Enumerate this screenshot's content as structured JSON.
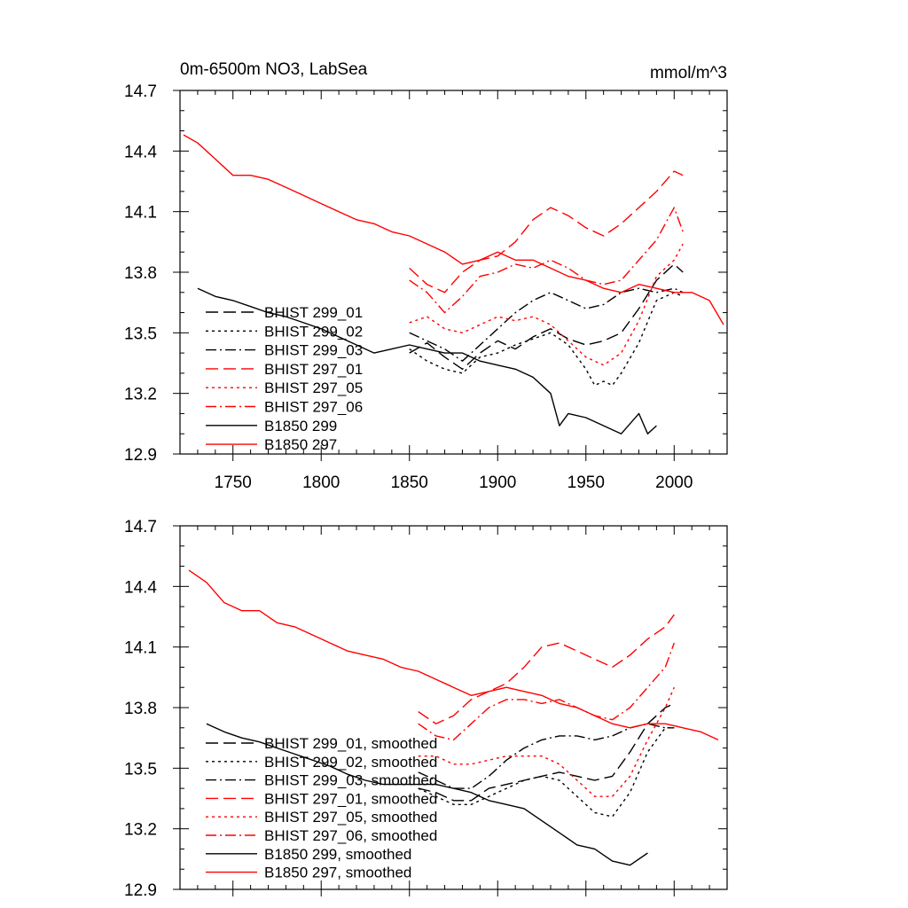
{
  "colors": {
    "black": "#000000",
    "red": "#ff0000"
  },
  "chart_data": [
    {
      "type": "line",
      "title": "0m-6500m NO3, LabSea",
      "units": "mmol/m^3",
      "xlim": [
        1720,
        2030
      ],
      "ylim": [
        12.9,
        14.7
      ],
      "xticks": [
        1750,
        1800,
        1850,
        1900,
        1950,
        2000
      ],
      "xtick_labels": [
        "1750",
        "1800",
        "1850",
        "1900",
        "1950",
        "2000"
      ],
      "yticks": [
        12.9,
        13.2,
        13.5,
        13.8,
        14.1,
        14.4,
        14.7
      ],
      "ytick_labels": [
        "12.9",
        "13.2",
        "13.5",
        "13.8",
        "14.1",
        "14.4",
        "14.7"
      ],
      "legend_position": "left",
      "series": [
        {
          "name": "BHIST 299_01",
          "color": "#000000",
          "dash": "dash",
          "x": [
            1850,
            1860,
            1870,
            1880,
            1890,
            1900,
            1910,
            1920,
            1930,
            1940,
            1950,
            1960,
            1970,
            1980,
            1990,
            2000,
            2005
          ],
          "y": [
            13.4,
            13.45,
            13.38,
            13.32,
            13.4,
            13.46,
            13.42,
            13.48,
            13.52,
            13.47,
            13.44,
            13.46,
            13.5,
            13.62,
            13.76,
            13.84,
            13.8
          ]
        },
        {
          "name": "BHIST 299_02",
          "color": "#000000",
          "dash": "dot",
          "x": [
            1850,
            1860,
            1870,
            1880,
            1890,
            1900,
            1910,
            1920,
            1930,
            1940,
            1950,
            1955,
            1960,
            1965,
            1970,
            1980,
            1990,
            2000,
            2005
          ],
          "y": [
            13.42,
            13.36,
            13.32,
            13.3,
            13.38,
            13.4,
            13.44,
            13.47,
            13.5,
            13.44,
            13.32,
            13.24,
            13.26,
            13.24,
            13.3,
            13.45,
            13.66,
            13.7,
            13.68
          ]
        },
        {
          "name": "BHIST 299_03",
          "color": "#000000",
          "dash": "dashdot",
          "x": [
            1850,
            1860,
            1870,
            1880,
            1890,
            1900,
            1910,
            1920,
            1930,
            1940,
            1950,
            1960,
            1970,
            1980,
            1990,
            2000,
            2005
          ],
          "y": [
            13.5,
            13.46,
            13.42,
            13.36,
            13.44,
            13.52,
            13.6,
            13.66,
            13.7,
            13.66,
            13.62,
            13.64,
            13.7,
            13.72,
            13.7,
            13.72,
            13.7
          ]
        },
        {
          "name": "BHIST 297_01",
          "color": "#ff0000",
          "dash": "dash",
          "x": [
            1850,
            1860,
            1870,
            1880,
            1890,
            1900,
            1910,
            1920,
            1930,
            1940,
            1950,
            1960,
            1970,
            1980,
            1990,
            2000,
            2005
          ],
          "y": [
            13.82,
            13.74,
            13.7,
            13.8,
            13.86,
            13.88,
            13.95,
            14.06,
            14.12,
            14.08,
            14.02,
            13.98,
            14.04,
            14.12,
            14.2,
            14.3,
            14.28
          ]
        },
        {
          "name": "BHIST 297_05",
          "color": "#ff0000",
          "dash": "dot",
          "x": [
            1850,
            1860,
            1870,
            1880,
            1890,
            1900,
            1910,
            1920,
            1930,
            1940,
            1950,
            1960,
            1970,
            1980,
            1990,
            2000,
            2005
          ],
          "y": [
            13.55,
            13.58,
            13.52,
            13.5,
            13.54,
            13.58,
            13.56,
            13.58,
            13.54,
            13.46,
            13.38,
            13.34,
            13.4,
            13.56,
            13.78,
            13.86,
            13.94
          ]
        },
        {
          "name": "BHIST 297_06",
          "color": "#ff0000",
          "dash": "dashdot",
          "x": [
            1850,
            1860,
            1870,
            1880,
            1890,
            1900,
            1910,
            1920,
            1930,
            1940,
            1950,
            1960,
            1970,
            1980,
            1990,
            2000,
            2005
          ],
          "y": [
            13.76,
            13.7,
            13.6,
            13.68,
            13.78,
            13.8,
            13.84,
            13.82,
            13.86,
            13.82,
            13.76,
            13.74,
            13.76,
            13.86,
            13.96,
            14.12,
            14.0
          ]
        },
        {
          "name": "B1850 299",
          "color": "#000000",
          "dash": "solid",
          "x": [
            1730,
            1740,
            1750,
            1760,
            1770,
            1780,
            1790,
            1800,
            1810,
            1820,
            1830,
            1840,
            1850,
            1860,
            1870,
            1880,
            1890,
            1900,
            1910,
            1920,
            1930,
            1935,
            1940,
            1950,
            1960,
            1970,
            1980,
            1985,
            1990
          ],
          "y": [
            13.72,
            13.68,
            13.66,
            13.63,
            13.6,
            13.58,
            13.55,
            13.52,
            13.48,
            13.44,
            13.4,
            13.42,
            13.44,
            13.42,
            13.4,
            13.4,
            13.36,
            13.34,
            13.32,
            13.28,
            13.2,
            13.04,
            13.1,
            13.08,
            13.04,
            13.0,
            13.1,
            13.0,
            13.04
          ]
        },
        {
          "name": "B1850 297",
          "color": "#ff0000",
          "dash": "solid",
          "x": [
            1722,
            1730,
            1740,
            1750,
            1760,
            1770,
            1780,
            1790,
            1800,
            1810,
            1820,
            1830,
            1840,
            1850,
            1860,
            1870,
            1880,
            1890,
            1900,
            1910,
            1920,
            1930,
            1940,
            1950,
            1960,
            1970,
            1980,
            1990,
            2000,
            2010,
            2020,
            2028
          ],
          "y": [
            14.48,
            14.44,
            14.36,
            14.28,
            14.28,
            14.26,
            14.22,
            14.18,
            14.14,
            14.1,
            14.06,
            14.04,
            14.0,
            13.98,
            13.94,
            13.9,
            13.84,
            13.86,
            13.9,
            13.86,
            13.86,
            13.82,
            13.78,
            13.76,
            13.72,
            13.7,
            13.74,
            13.72,
            13.7,
            13.7,
            13.66,
            13.54
          ]
        }
      ]
    },
    {
      "type": "line",
      "xlim": [
        1720,
        2030
      ],
      "ylim": [
        12.9,
        14.7
      ],
      "xticks": [
        1750,
        1800,
        1850,
        1900,
        1950,
        2000
      ],
      "yticks": [
        12.9,
        13.2,
        13.5,
        13.8,
        14.1,
        14.4,
        14.7
      ],
      "ytick_labels": [
        "12.9",
        "13.2",
        "13.5",
        "13.8",
        "14.1",
        "14.4",
        "14.7"
      ],
      "legend_position": "left",
      "series": [
        {
          "name": "BHIST 299_01, smoothed",
          "color": "#000000",
          "dash": "dash",
          "x": [
            1855,
            1865,
            1875,
            1885,
            1895,
            1905,
            1915,
            1925,
            1935,
            1945,
            1955,
            1965,
            1975,
            1985,
            1995,
            2000
          ],
          "y": [
            13.4,
            13.38,
            13.34,
            13.34,
            13.4,
            13.42,
            13.44,
            13.46,
            13.48,
            13.46,
            13.44,
            13.46,
            13.58,
            13.72,
            13.8,
            13.82
          ]
        },
        {
          "name": "BHIST 299_02, smoothed",
          "color": "#000000",
          "dash": "dot",
          "x": [
            1855,
            1865,
            1875,
            1885,
            1895,
            1905,
            1915,
            1925,
            1935,
            1945,
            1955,
            1965,
            1975,
            1985,
            1995,
            2000
          ],
          "y": [
            13.4,
            13.36,
            13.32,
            13.32,
            13.36,
            13.4,
            13.44,
            13.46,
            13.44,
            13.36,
            13.28,
            13.26,
            13.38,
            13.58,
            13.7,
            13.7
          ]
        },
        {
          "name": "BHIST 299_03, smoothed",
          "color": "#000000",
          "dash": "dashdot",
          "x": [
            1855,
            1865,
            1875,
            1885,
            1895,
            1905,
            1915,
            1925,
            1935,
            1945,
            1955,
            1965,
            1975,
            1985,
            1995,
            2000
          ],
          "y": [
            13.48,
            13.44,
            13.4,
            13.4,
            13.46,
            13.54,
            13.6,
            13.64,
            13.66,
            13.66,
            13.64,
            13.66,
            13.7,
            13.72,
            13.7,
            13.7
          ]
        },
        {
          "name": "BHIST 297_01, smoothed",
          "color": "#ff0000",
          "dash": "dash",
          "x": [
            1855,
            1865,
            1875,
            1885,
            1895,
            1905,
            1915,
            1925,
            1935,
            1945,
            1955,
            1965,
            1975,
            1985,
            1995,
            2000
          ],
          "y": [
            13.78,
            13.72,
            13.76,
            13.84,
            13.88,
            13.92,
            14.0,
            14.1,
            14.12,
            14.08,
            14.04,
            14.0,
            14.06,
            14.14,
            14.2,
            14.26
          ]
        },
        {
          "name": "BHIST 297_05, smoothed",
          "color": "#ff0000",
          "dash": "dot",
          "x": [
            1855,
            1865,
            1875,
            1885,
            1895,
            1905,
            1915,
            1925,
            1935,
            1945,
            1955,
            1965,
            1975,
            1985,
            1995,
            2000
          ],
          "y": [
            13.56,
            13.56,
            13.52,
            13.52,
            13.54,
            13.56,
            13.56,
            13.56,
            13.52,
            13.44,
            13.36,
            13.36,
            13.46,
            13.64,
            13.8,
            13.9
          ]
        },
        {
          "name": "BHIST 297_06, smoothed",
          "color": "#ff0000",
          "dash": "dashdot",
          "x": [
            1855,
            1865,
            1875,
            1885,
            1895,
            1905,
            1915,
            1925,
            1935,
            1945,
            1955,
            1965,
            1975,
            1985,
            1995,
            2000
          ],
          "y": [
            13.72,
            13.66,
            13.64,
            13.72,
            13.8,
            13.84,
            13.84,
            13.82,
            13.84,
            13.8,
            13.76,
            13.74,
            13.8,
            13.9,
            14.0,
            14.12
          ]
        },
        {
          "name": "B1850 299, smoothed",
          "color": "#000000",
          "dash": "solid",
          "x": [
            1735,
            1745,
            1755,
            1765,
            1775,
            1785,
            1795,
            1805,
            1815,
            1825,
            1835,
            1845,
            1855,
            1865,
            1875,
            1885,
            1895,
            1905,
            1915,
            1925,
            1935,
            1945,
            1955,
            1965,
            1975,
            1985
          ],
          "y": [
            13.72,
            13.68,
            13.65,
            13.63,
            13.6,
            13.57,
            13.54,
            13.51,
            13.47,
            13.44,
            13.42,
            13.42,
            13.42,
            13.42,
            13.4,
            13.38,
            13.34,
            13.32,
            13.3,
            13.24,
            13.18,
            13.12,
            13.1,
            13.04,
            13.02,
            13.08
          ]
        },
        {
          "name": "B1850 297, smoothed",
          "color": "#ff0000",
          "dash": "solid",
          "x": [
            1725,
            1735,
            1745,
            1755,
            1765,
            1775,
            1785,
            1795,
            1805,
            1815,
            1825,
            1835,
            1845,
            1855,
            1865,
            1875,
            1885,
            1895,
            1905,
            1915,
            1925,
            1935,
            1945,
            1955,
            1965,
            1975,
            1985,
            1995,
            2005,
            2015,
            2025
          ],
          "y": [
            14.48,
            14.42,
            14.32,
            14.28,
            14.28,
            14.22,
            14.2,
            14.16,
            14.12,
            14.08,
            14.06,
            14.04,
            14.0,
            13.98,
            13.94,
            13.9,
            13.86,
            13.88,
            13.9,
            13.88,
            13.86,
            13.82,
            13.8,
            13.76,
            13.72,
            13.7,
            13.72,
            13.72,
            13.7,
            13.68,
            13.64
          ]
        }
      ]
    }
  ]
}
